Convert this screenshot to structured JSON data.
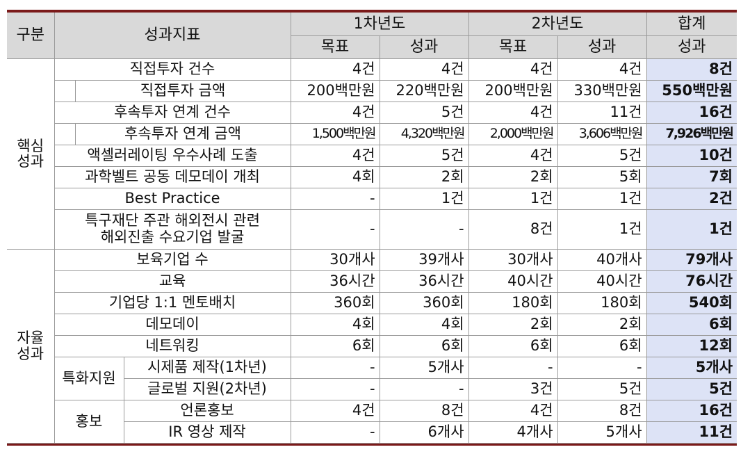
{
  "header": {
    "category": "구분",
    "indicator": "성과지표",
    "year1": "1차년도",
    "year2": "2차년도",
    "total": "합계",
    "target": "목표",
    "result": "성과"
  },
  "groups": {
    "core_line1": "핵심",
    "core_line2": "성과",
    "auto_line1": "자율",
    "auto_line2": "성과",
    "special": "특화지원",
    "pr": "홍보"
  },
  "rows": [
    {
      "label": "직접투자 건수",
      "y1t": "4건",
      "y1r": "4건",
      "y2t": "4건",
      "y2r": "4건",
      "total": "8건"
    },
    {
      "label": "직접투자 금액",
      "y1t": "200백만원",
      "y1r": "220백만원",
      "y2t": "200백만원",
      "y2r": "330백만원",
      "total": "550백만원"
    },
    {
      "label": "후속투자 연계 건수",
      "y1t": "4건",
      "y1r": "5건",
      "y2t": "4건",
      "y2r": "11건",
      "total": "16건"
    },
    {
      "label": "후속투자 연계 금액",
      "y1t": "1,500백만원",
      "y1r": "4,320백만원",
      "y2t": "2,000백만원",
      "y2r": "3,606백만원",
      "total": "7,926백만원"
    },
    {
      "label": "액셀러레이팅 우수사례 도출",
      "y1t": "4건",
      "y1r": "5건",
      "y2t": "4건",
      "y2r": "5건",
      "total": "10건"
    },
    {
      "label": "과학벨트 공동 데모데이 개최",
      "y1t": "4회",
      "y1r": "2회",
      "y2t": "2회",
      "y2r": "5회",
      "total": "7회"
    },
    {
      "label": "Best Practice",
      "y1t": "-",
      "y1r": "1건",
      "y2t": "1건",
      "y2r": "1건",
      "total": "2건"
    },
    {
      "label1": "특구재단 주관 해외전시 관련",
      "label2": "해외진출 수요기업 발굴",
      "y1t": "-",
      "y1r": "-",
      "y2t": "8건",
      "y2r": "1건",
      "total": "1건"
    },
    {
      "label": "보육기업 수",
      "y1t": "30개사",
      "y1r": "39개사",
      "y2t": "30개사",
      "y2r": "40개사",
      "total": "79개사"
    },
    {
      "label": "교육",
      "y1t": "36시간",
      "y1r": "36시간",
      "y2t": "40시간",
      "y2r": "40시간",
      "total": "76시간"
    },
    {
      "label": "기업당 1:1 멘토배치",
      "y1t": "360회",
      "y1r": "360회",
      "y2t": "180회",
      "y2r": "180회",
      "total": "540회"
    },
    {
      "label": "데모데이",
      "y1t": "4회",
      "y1r": "4회",
      "y2t": "2회",
      "y2r": "2회",
      "total": "6회"
    },
    {
      "label": "네트워킹",
      "y1t": "6회",
      "y1r": "6회",
      "y2t": "6회",
      "y2r": "6회",
      "total": "12회"
    },
    {
      "label": "시제품 제작(1차년)",
      "y1t": "-",
      "y1r": "5개사",
      "y2t": "-",
      "y2r": "-",
      "total": "5개사"
    },
    {
      "label": "글로벌 지원(2차년)",
      "y1t": "-",
      "y1r": "-",
      "y2t": "3건",
      "y2r": "5건",
      "total": "5건"
    },
    {
      "label": "언론홍보",
      "y1t": "4건",
      "y1r": "8건",
      "y2t": "4건",
      "y2r": "8건",
      "total": "16건"
    },
    {
      "label": "IR 영상 제작",
      "y1t": "-",
      "y1r": "6개사",
      "y2t": "4개사",
      "y2r": "5개사",
      "total": "11건"
    }
  ]
}
